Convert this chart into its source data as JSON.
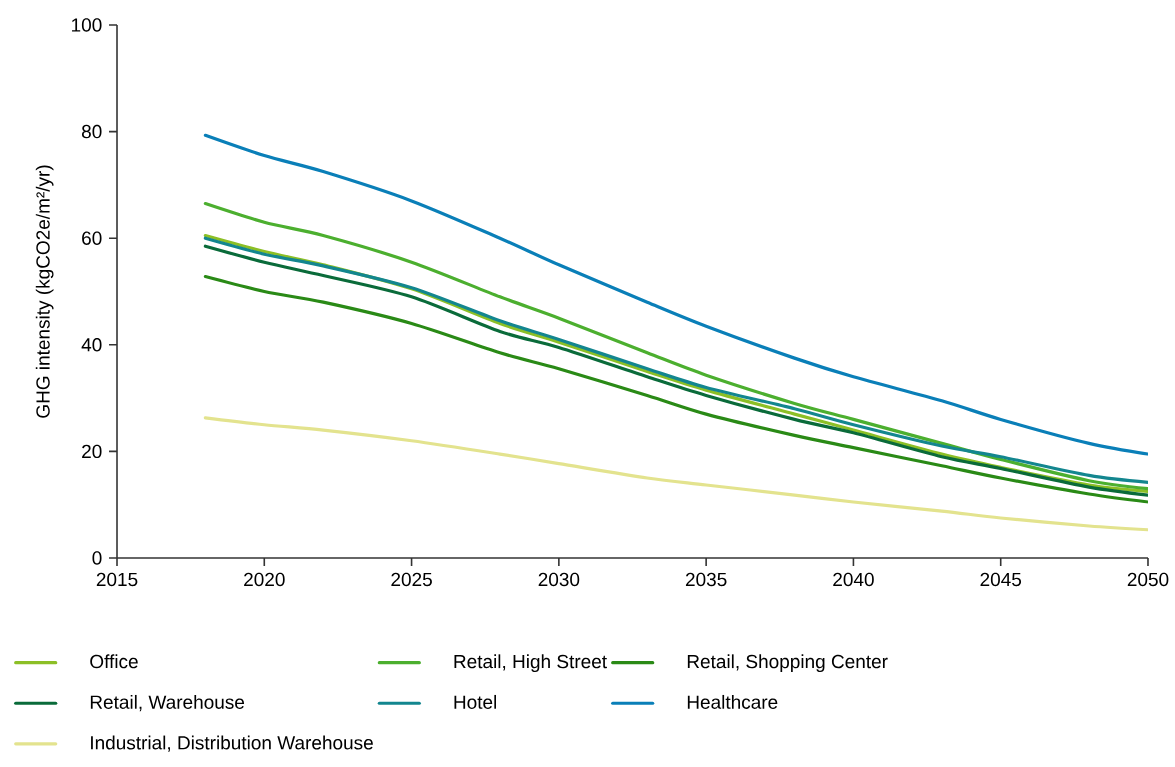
{
  "chart_data": {
    "type": "line",
    "ylabel": "GHG intensity (kgCO2e/m²/yr)",
    "x": [
      2018,
      2020,
      2022,
      2025,
      2028,
      2030,
      2033,
      2035,
      2038,
      2040,
      2043,
      2045,
      2048,
      2050
    ],
    "series": [
      {
        "name": "Office",
        "color": "#8cbf26",
        "values": [
          60.5,
          57.5,
          55,
          50.5,
          44,
          40.5,
          35,
          31.5,
          27,
          24,
          19.5,
          17,
          13.7,
          12.5
        ]
      },
      {
        "name": "Retail, High Street",
        "color": "#4caf2f",
        "values": [
          66.5,
          63,
          60.5,
          55.5,
          49,
          45,
          38.5,
          34.3,
          29,
          26,
          21.5,
          18.5,
          14.5,
          13
        ]
      },
      {
        "name": "Retail, Shopping Center",
        "color": "#2a8a16",
        "values": [
          52.8,
          50,
          48,
          44,
          38.5,
          35.5,
          30.5,
          27,
          23,
          20.7,
          17.3,
          15,
          12,
          10.5
        ]
      },
      {
        "name": "Retail, Warehouse",
        "color": "#0a6b3a",
        "values": [
          58.5,
          55.5,
          53,
          49,
          42.5,
          39.5,
          34,
          30.5,
          26,
          23.5,
          19,
          16.8,
          13.3,
          11.8
        ]
      },
      {
        "name": "Hotel",
        "color": "#13868f",
        "values": [
          60,
          57,
          54.8,
          50.7,
          44.5,
          41,
          35.5,
          32,
          28,
          25,
          21,
          19,
          15.5,
          14.2
        ]
      },
      {
        "name": "Healthcare",
        "color": "#0a7fb8",
        "values": [
          79.3,
          75.5,
          72.5,
          67,
          60,
          55,
          48,
          43.5,
          37.5,
          34,
          29.5,
          26,
          21.5,
          19.5
        ]
      },
      {
        "name": "Industrial, Distribution Warehouse",
        "color": "#e3e38e",
        "values": [
          26.3,
          25,
          24,
          22,
          19.5,
          17.7,
          15,
          13.7,
          11.8,
          10.5,
          8.8,
          7.5,
          6,
          5.3
        ]
      }
    ],
    "xlim": [
      2015,
      2050
    ],
    "ylim": [
      0,
      100
    ],
    "xticks": [
      2015,
      2020,
      2025,
      2030,
      2035,
      2040,
      2045,
      2050
    ],
    "yticks": [
      0,
      20,
      40,
      60,
      80,
      100
    ],
    "legend": "bottom",
    "grid": false,
    "marker": "none",
    "line_style": "solid"
  }
}
